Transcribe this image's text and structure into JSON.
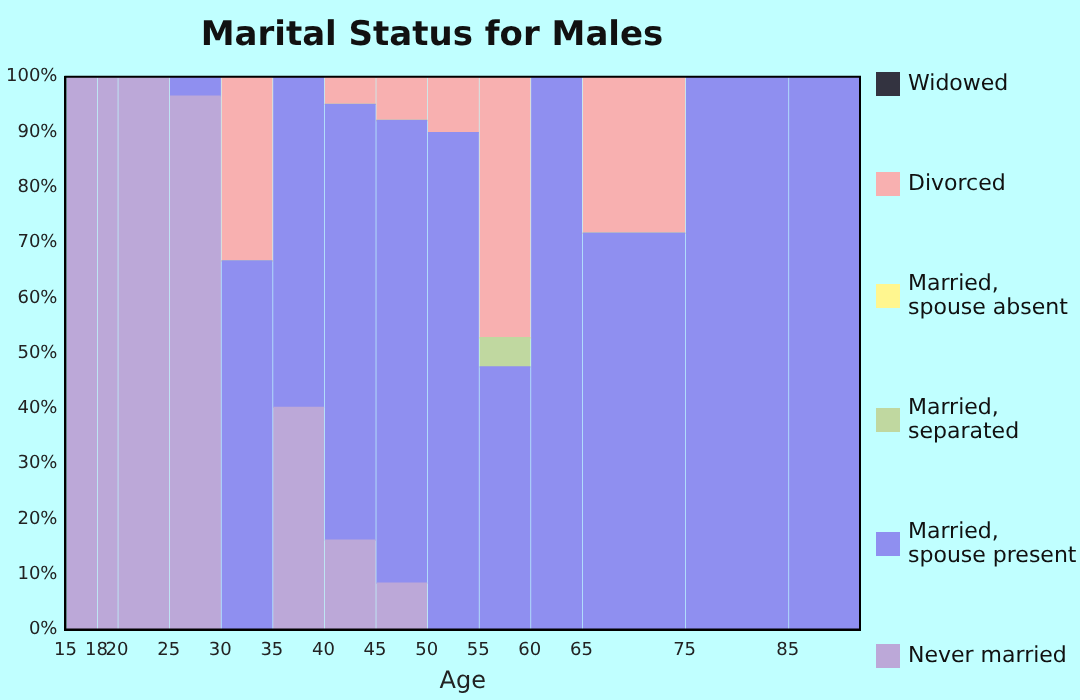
{
  "chart_data": {
    "type": "bar",
    "title": "Marital Status for Males",
    "xlabel": "Age",
    "stacked": true,
    "legend": "right",
    "x": [
      16.5,
      19,
      22.5,
      27.5,
      32.5,
      37.5,
      42.5,
      47.5,
      52.5,
      57.5,
      62.5,
      70,
      80,
      88.5
    ],
    "xlim": [
      15,
      92
    ],
    "xticks": [
      15,
      18,
      20,
      25,
      30,
      35,
      40,
      45,
      50,
      55,
      60,
      65,
      75,
      85
    ],
    "ylim": [
      0,
      100
    ],
    "yticks": [
      {
        "value": 0,
        "label": "0%"
      },
      {
        "value": 10,
        "label": "10%"
      },
      {
        "value": 20,
        "label": "20%"
      },
      {
        "value": 30,
        "label": "30%"
      },
      {
        "value": 40,
        "label": "40%"
      },
      {
        "value": 50,
        "label": "50%"
      },
      {
        "value": 60,
        "label": "60%"
      },
      {
        "value": 70,
        "label": "70%"
      },
      {
        "value": 80,
        "label": "80%"
      },
      {
        "value": 90,
        "label": "90%"
      },
      {
        "value": 100,
        "label": "100%"
      }
    ],
    "series": [
      {
        "name": "Never married",
        "color": "#bca8d8",
        "values": [
          100,
          100,
          100,
          96.5,
          0,
          40.2,
          16.2,
          8.4,
          0,
          0,
          0,
          0,
          0,
          0
        ]
      },
      {
        "name": "Married, spouse present",
        "color": "#8f8ff0",
        "values": [
          0,
          0,
          0,
          3.5,
          66.7,
          59.8,
          78.8,
          83.7,
          89.9,
          47.5,
          100,
          71.7,
          100,
          100
        ]
      },
      {
        "name": "Married, separated",
        "color": "#c0d8a0",
        "values": [
          0,
          0,
          0,
          0,
          0,
          0,
          0,
          0,
          0,
          5.3,
          0,
          0,
          0,
          0
        ]
      },
      {
        "name": "Married, spouse absent",
        "color": "#fff68f",
        "values": [
          0,
          0,
          0,
          0,
          0,
          0,
          0,
          0,
          0,
          0,
          0,
          0,
          0,
          0
        ]
      },
      {
        "name": "Divorced",
        "color": "#f8b0b0",
        "values": [
          0,
          0,
          0,
          0,
          33.3,
          0,
          5,
          7.9,
          10.1,
          47.2,
          0,
          28.3,
          0,
          0
        ]
      },
      {
        "name": "Widowed",
        "color": "#333340",
        "values": [
          0,
          0,
          0,
          0,
          0,
          0,
          0,
          0,
          0,
          0,
          0,
          0,
          0,
          0
        ]
      }
    ]
  }
}
